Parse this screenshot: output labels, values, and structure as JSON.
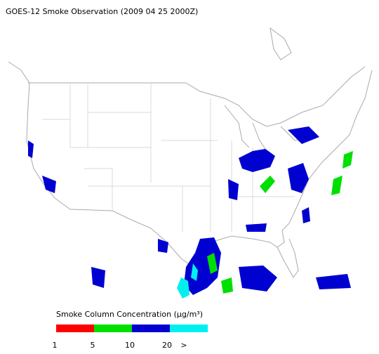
{
  "title": "GOES-12 Smoke Observation (2009 04 25  2000Z)",
  "legend": {
    "title": "Smoke Column Concentration (μg/m³)",
    "bins": [
      {
        "color": "#ff0000"
      },
      {
        "color": "#00e000"
      },
      {
        "color": "#0000d0"
      },
      {
        "color": "#00f0f0"
      }
    ],
    "labels": [
      "1",
      "5",
      "10",
      "20",
      ">"
    ]
  }
}
